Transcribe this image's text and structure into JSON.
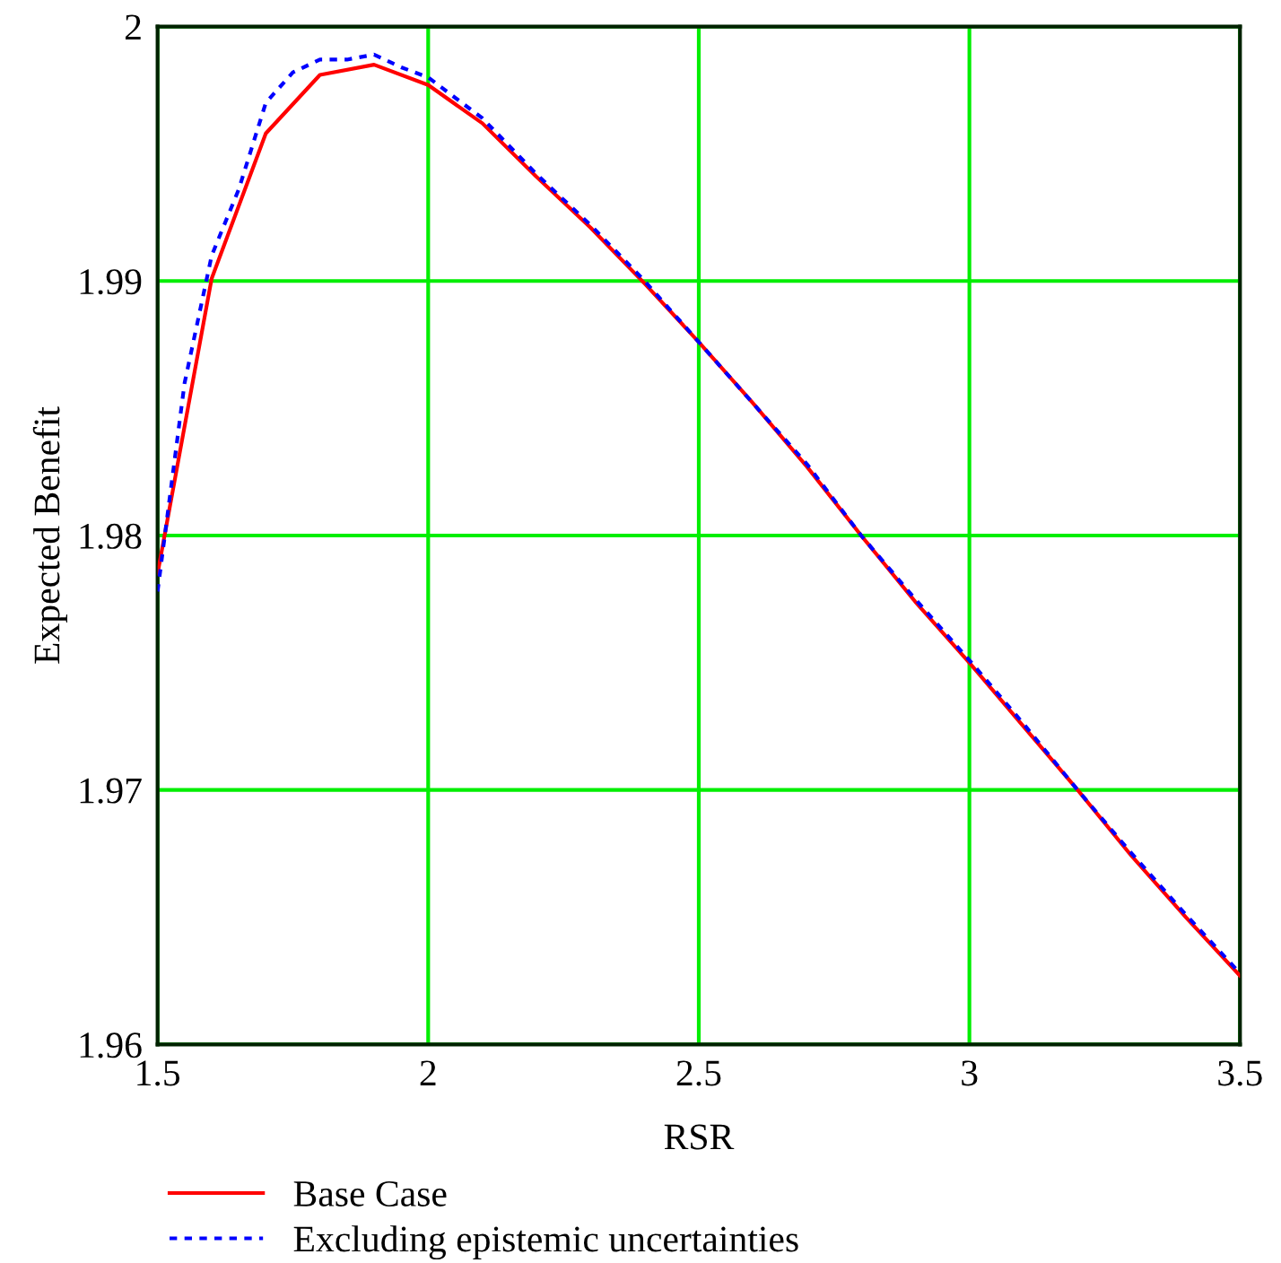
{
  "chart_data": {
    "type": "line",
    "xlabel": "RSR",
    "ylabel": "Expected Benefit",
    "xlim": [
      1.5,
      3.5
    ],
    "ylim": [
      1.96,
      2
    ],
    "xticks": [
      1.5,
      2,
      2.5,
      3,
      3.5
    ],
    "yticks": [
      1.96,
      1.97,
      1.98,
      1.99,
      2
    ],
    "grid": true,
    "legend": "bottom",
    "marker": "none",
    "series": [
      {
        "name": "Base Case",
        "color": "#ff0000",
        "line_style": "solid",
        "x": [
          1.5,
          1.6,
          1.7,
          1.8,
          1.9,
          2.0,
          2.1,
          2.2,
          2.3,
          2.4,
          2.5,
          2.6,
          2.7,
          2.8,
          2.9,
          3.0,
          3.1,
          3.2,
          3.3,
          3.4,
          3.5
        ],
        "values": [
          1.9785,
          1.9901,
          1.9958,
          1.9981,
          1.9985,
          1.9977,
          1.9962,
          1.9941,
          1.9921,
          1.9899,
          1.9876,
          1.9852,
          1.9827,
          1.98,
          1.9774,
          1.975,
          1.9725,
          1.97,
          1.9674,
          1.965,
          1.9627
        ]
      },
      {
        "name": "Excluding epistemic uncertainties",
        "color": "#0000ff",
        "line_style": "dotted",
        "x": [
          1.5,
          1.55,
          1.6,
          1.65,
          1.7,
          1.75,
          1.8,
          1.85,
          1.9,
          1.95,
          2.0,
          2.1,
          2.2,
          2.3,
          2.4,
          2.5,
          2.6,
          2.7,
          2.8,
          2.9,
          3.0,
          3.1,
          3.2,
          3.3,
          3.4,
          3.5
        ],
        "values": [
          1.9778,
          1.986,
          1.991,
          1.9936,
          1.997,
          1.9982,
          1.9987,
          1.9987,
          1.9989,
          1.9984,
          1.998,
          1.9964,
          1.9942,
          1.9922,
          1.99,
          1.9876,
          1.9852,
          1.9828,
          1.98,
          1.9775,
          1.9751,
          1.9726,
          1.97,
          1.9675,
          1.9651,
          1.9628
        ]
      }
    ]
  }
}
